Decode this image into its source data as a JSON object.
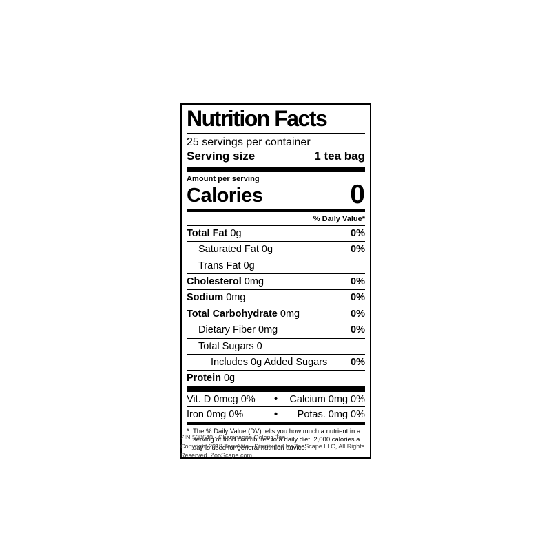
{
  "label": {
    "title": "Nutrition Facts",
    "servings_per_container": "25 servings per container",
    "serving_size_label": "Serving size",
    "serving_size_value": "1 tea bag",
    "amount_per_serving": "Amount per serving",
    "calories_label": "Calories",
    "calories_value": "0",
    "daily_value_header": "% Daily Value*",
    "nutrients": [
      {
        "name": "Total Fat",
        "amount": "0g",
        "dv": "0%"
      },
      {
        "name": "Saturated Fat",
        "amount": "0g",
        "dv": "0%"
      },
      {
        "name": "Trans Fat",
        "amount": "0g",
        "dv": ""
      },
      {
        "name": "Cholesterol",
        "amount": "0mg",
        "dv": "0%"
      },
      {
        "name": "Sodium",
        "amount": "0mg",
        "dv": "0%"
      },
      {
        "name": "Total Carbohydrate",
        "amount": "0mg",
        "dv": "0%"
      },
      {
        "name": "Dietary Fiber",
        "amount": "0mg",
        "dv": "0%"
      },
      {
        "name": "Total Sugars",
        "amount": "0",
        "dv": ""
      },
      {
        "name": "Includes 0g Added Sugars",
        "amount": "",
        "dv": "0%"
      },
      {
        "name": "Protein",
        "amount": "0g",
        "dv": ""
      }
    ],
    "micronutrients": {
      "separator": "•",
      "rows": [
        {
          "left": "Vit. D 0mcg 0%",
          "right": "Calcium 0mg 0%"
        },
        {
          "left": "Iron 0mg 0%",
          "right": "Potas. 0mg 0%"
        }
      ]
    },
    "footnote_marker": "*",
    "footnote": "The % Daily Value (DV) tells you how much a nutrient in a serving of food contributes to a daily diet. 2,000 calories a day is used for general nutrition advice."
  },
  "caption": {
    "line1": "ZIN 538640 - Champagne Oolong Tea",
    "line2": "Copyright 2019 TerraVita - Distributed by ZooScape LLC, All Rights Reserved. ZooScape.com"
  },
  "colors": {
    "label_text": "#000000",
    "caption_text": "#3a3a3a",
    "background": "#ffffff"
  }
}
